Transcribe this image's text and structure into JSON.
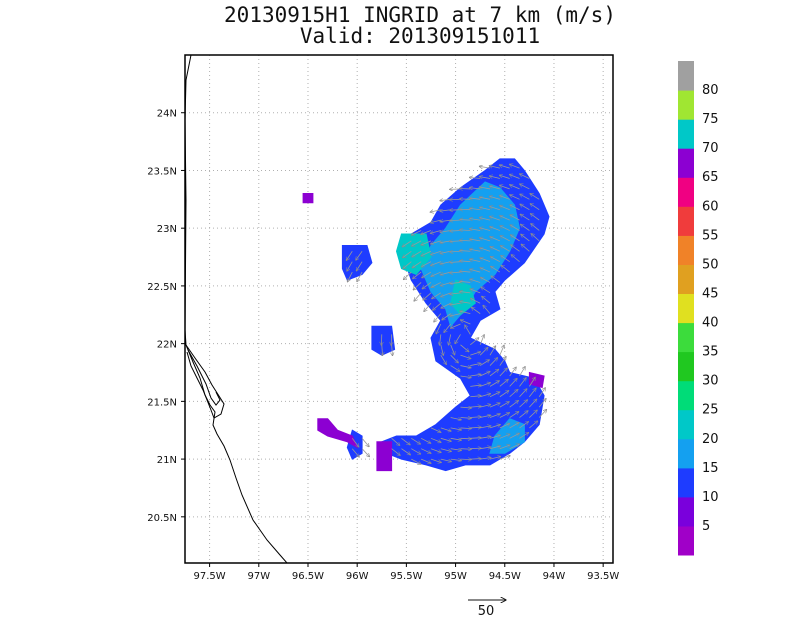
{
  "header": {
    "title_line1": "20130915H1 INGRID at 7 km (m/s)",
    "title_line2": "Valid: 201309151011"
  },
  "chart_data": {
    "type": "heatmap",
    "title": "20130915H1 INGRID at 7 km (m/s)",
    "subtitle": "Valid: 201309151011",
    "xlim": [
      -97.75,
      -93.4
    ],
    "ylim": [
      20.1,
      24.5
    ],
    "x_ticks": [
      {
        "value": -97.5,
        "label": "97.5W"
      },
      {
        "value": -97.0,
        "label": "97W"
      },
      {
        "value": -96.5,
        "label": "96.5W"
      },
      {
        "value": -96.0,
        "label": "96W"
      },
      {
        "value": -95.5,
        "label": "95.5W"
      },
      {
        "value": -95.0,
        "label": "95W"
      },
      {
        "value": -94.5,
        "label": "94.5W"
      },
      {
        "value": -94.0,
        "label": "94W"
      },
      {
        "value": -93.5,
        "label": "93.5W"
      }
    ],
    "y_ticks": [
      {
        "value": 20.5,
        "label": "20.5N"
      },
      {
        "value": 21.0,
        "label": "21N"
      },
      {
        "value": 21.5,
        "label": "21.5N"
      },
      {
        "value": 22.0,
        "label": "22N"
      },
      {
        "value": 22.5,
        "label": "22.5N"
      },
      {
        "value": 23.0,
        "label": "23N"
      },
      {
        "value": 23.5,
        "label": "23.5N"
      },
      {
        "value": 24.0,
        "label": "24N"
      }
    ],
    "grid": true,
    "colorbar": {
      "labels": [
        "5",
        "10",
        "15",
        "20",
        "25",
        "30",
        "35",
        "40",
        "45",
        "50",
        "55",
        "60",
        "65",
        "70",
        "75",
        "80"
      ],
      "colors": [
        "#a000c8",
        "#7a00dc",
        "#1e3cff",
        "#14a0f0",
        "#00c8c8",
        "#00dc78",
        "#20c820",
        "#3cdc3c",
        "#e0e020",
        "#e0a020",
        "#f08228",
        "#f03c3c",
        "#f00082",
        "#8c00d2",
        "#00c8c8",
        "#a0e632",
        "#a0a0a0"
      ]
    },
    "regions": [
      {
        "name": "main-outer",
        "speed_class": "10-15",
        "color": "#1e3cff",
        "polygon": [
          [
            -94.55,
            23.6
          ],
          [
            -94.4,
            23.6
          ],
          [
            -94.3,
            23.5
          ],
          [
            -94.15,
            23.3
          ],
          [
            -94.05,
            23.1
          ],
          [
            -94.1,
            22.95
          ],
          [
            -94.3,
            22.7
          ],
          [
            -94.5,
            22.55
          ],
          [
            -94.6,
            22.45
          ],
          [
            -94.55,
            22.3
          ],
          [
            -94.75,
            22.2
          ],
          [
            -94.85,
            22.05
          ],
          [
            -94.6,
            21.95
          ],
          [
            -94.5,
            21.85
          ],
          [
            -94.45,
            21.75
          ],
          [
            -94.2,
            21.7
          ],
          [
            -94.1,
            21.55
          ],
          [
            -94.15,
            21.3
          ],
          [
            -94.3,
            21.15
          ],
          [
            -94.45,
            21.05
          ],
          [
            -94.65,
            20.95
          ],
          [
            -94.9,
            20.95
          ],
          [
            -95.1,
            20.9
          ],
          [
            -95.3,
            20.95
          ],
          [
            -95.55,
            21.0
          ],
          [
            -95.7,
            21.05
          ],
          [
            -95.75,
            21.15
          ],
          [
            -95.6,
            21.2
          ],
          [
            -95.4,
            21.2
          ],
          [
            -95.2,
            21.3
          ],
          [
            -95.0,
            21.45
          ],
          [
            -94.85,
            21.55
          ],
          [
            -94.95,
            21.7
          ],
          [
            -95.2,
            21.85
          ],
          [
            -95.25,
            22.05
          ],
          [
            -95.15,
            22.2
          ],
          [
            -95.3,
            22.35
          ],
          [
            -95.45,
            22.55
          ],
          [
            -95.55,
            22.8
          ],
          [
            -95.45,
            22.95
          ],
          [
            -95.25,
            23.05
          ],
          [
            -95.15,
            23.2
          ],
          [
            -94.95,
            23.35
          ],
          [
            -94.7,
            23.5
          ]
        ]
      },
      {
        "name": "west-blob",
        "speed_class": "10-15",
        "color": "#1e3cff",
        "polygon": [
          [
            -96.15,
            22.85
          ],
          [
            -95.9,
            22.85
          ],
          [
            -95.85,
            22.7
          ],
          [
            -95.95,
            22.6
          ],
          [
            -96.1,
            22.55
          ],
          [
            -96.15,
            22.65
          ]
        ]
      },
      {
        "name": "small-west-blob",
        "speed_class": "10-15",
        "color": "#1e3cff",
        "polygon": [
          [
            -95.85,
            22.15
          ],
          [
            -95.65,
            22.15
          ],
          [
            -95.62,
            21.95
          ],
          [
            -95.75,
            21.9
          ],
          [
            -95.85,
            21.95
          ]
        ]
      },
      {
        "name": "southwest-arm",
        "speed_class": "10-15",
        "color": "#1e3cff",
        "polygon": [
          [
            -96.05,
            21.25
          ],
          [
            -95.95,
            21.2
          ],
          [
            -95.95,
            21.05
          ],
          [
            -96.05,
            21.0
          ],
          [
            -96.1,
            21.1
          ]
        ]
      },
      {
        "name": "main-inner",
        "speed_class": "15-20",
        "color": "#14a0f0",
        "polygon": [
          [
            -94.7,
            23.4
          ],
          [
            -94.55,
            23.35
          ],
          [
            -94.4,
            23.2
          ],
          [
            -94.35,
            23.0
          ],
          [
            -94.45,
            22.8
          ],
          [
            -94.6,
            22.6
          ],
          [
            -94.8,
            22.45
          ],
          [
            -94.9,
            22.3
          ],
          [
            -95.05,
            22.15
          ],
          [
            -95.1,
            22.3
          ],
          [
            -95.25,
            22.45
          ],
          [
            -95.35,
            22.65
          ],
          [
            -95.25,
            22.85
          ],
          [
            -95.1,
            23.0
          ],
          [
            -94.95,
            23.2
          ]
        ]
      },
      {
        "name": "jet-south",
        "speed_class": "15-20",
        "color": "#14a0f0",
        "polygon": [
          [
            -94.45,
            21.35
          ],
          [
            -94.3,
            21.3
          ],
          [
            -94.3,
            21.15
          ],
          [
            -94.5,
            21.05
          ],
          [
            -94.65,
            21.05
          ],
          [
            -94.6,
            21.2
          ]
        ]
      },
      {
        "name": "northwest-teal",
        "speed_class": "20-25",
        "color": "#00c8c8",
        "polygon": [
          [
            -95.55,
            22.95
          ],
          [
            -95.3,
            22.95
          ],
          [
            -95.25,
            22.75
          ],
          [
            -95.4,
            22.6
          ],
          [
            -95.55,
            22.65
          ],
          [
            -95.6,
            22.8
          ]
        ]
      },
      {
        "name": "center-teal",
        "speed_class": "20-25",
        "color": "#00c8c8",
        "polygon": [
          [
            -95.0,
            22.55
          ],
          [
            -94.85,
            22.5
          ],
          [
            -94.8,
            22.35
          ],
          [
            -94.95,
            22.25
          ],
          [
            -95.05,
            22.35
          ]
        ]
      },
      {
        "name": "purple-dot-north",
        "speed_class": "5-10",
        "color": "#8c00d2",
        "polygon": [
          [
            -96.55,
            23.3
          ],
          [
            -96.45,
            23.3
          ],
          [
            -96.45,
            23.22
          ],
          [
            -96.55,
            23.22
          ]
        ]
      },
      {
        "name": "purple-southwest",
        "speed_class": "5-10",
        "color": "#8c00d2",
        "polygon": [
          [
            -96.4,
            21.35
          ],
          [
            -96.3,
            21.35
          ],
          [
            -96.2,
            21.25
          ],
          [
            -96.05,
            21.2
          ],
          [
            -96.0,
            21.1
          ],
          [
            -96.1,
            21.15
          ],
          [
            -96.3,
            21.2
          ],
          [
            -96.4,
            21.25
          ]
        ]
      },
      {
        "name": "purple-south",
        "speed_class": "5-10",
        "color": "#8c00d2",
        "polygon": [
          [
            -95.8,
            21.15
          ],
          [
            -95.65,
            21.15
          ],
          [
            -95.65,
            20.9
          ],
          [
            -95.8,
            20.9
          ]
        ]
      },
      {
        "name": "purple-east",
        "speed_class": "5-10",
        "color": "#8c00d2",
        "polygon": [
          [
            -94.25,
            21.75
          ],
          [
            -94.1,
            21.72
          ],
          [
            -94.12,
            21.62
          ],
          [
            -94.25,
            21.65
          ]
        ]
      }
    ],
    "vector_reference": {
      "label": "50",
      "unit": "m/s"
    }
  }
}
